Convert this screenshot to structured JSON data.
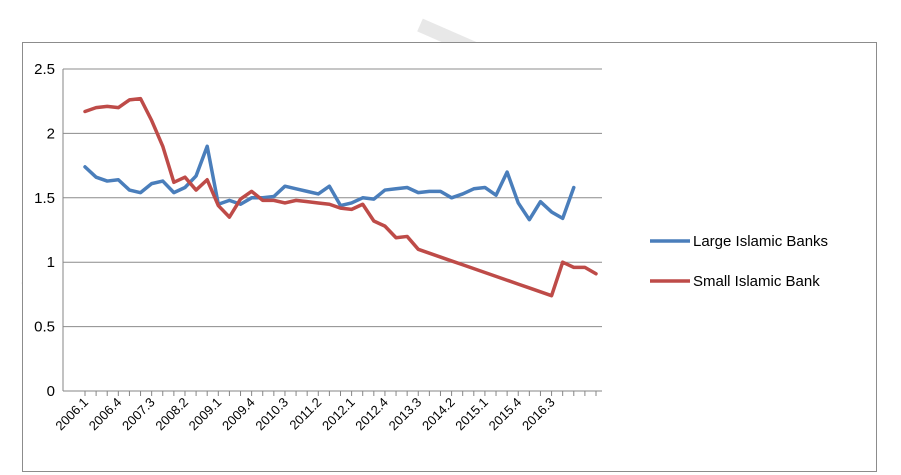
{
  "chart_data": {
    "type": "line",
    "title": "",
    "xlabel": "",
    "ylabel": "",
    "ylim": [
      0,
      2.5
    ],
    "yticks": [
      "0",
      "0.5",
      "1",
      "1.5",
      "2",
      "2.5"
    ],
    "xtick_labels": [
      "2006.1",
      "2006.4",
      "2007.3",
      "2008.2",
      "2009.1",
      "2009.4",
      "2010.3",
      "2011.2",
      "2012.1",
      "2012.4",
      "2013.3",
      "2014.2",
      "2015.1",
      "2015.4",
      "2016.3"
    ],
    "grid": true,
    "legend_position": "right",
    "series": [
      {
        "name": "Large Islamic Banks",
        "color": "#4a7ebb",
        "values": [
          1.74,
          1.66,
          1.63,
          1.64,
          1.56,
          1.54,
          1.61,
          1.63,
          1.54,
          1.58,
          1.67,
          1.9,
          1.45,
          1.48,
          1.45,
          1.5,
          1.5,
          1.51,
          1.59,
          1.57,
          1.55,
          1.53,
          1.59,
          1.44,
          1.46,
          1.5,
          1.49,
          1.56,
          1.57,
          1.58,
          1.54,
          1.55,
          1.55,
          1.5,
          1.53,
          1.57,
          1.58,
          1.52,
          1.7,
          1.46,
          1.33,
          1.47,
          1.39,
          1.34,
          1.58
        ]
      },
      {
        "name": "Small Islamic Bank",
        "color": "#be4b48",
        "values": [
          2.17,
          2.2,
          2.21,
          2.2,
          2.26,
          2.27,
          2.1,
          1.9,
          1.62,
          1.66,
          1.56,
          1.64,
          1.44,
          1.35,
          1.49,
          1.55,
          1.48,
          1.48,
          1.46,
          1.48,
          1.47,
          1.46,
          1.45,
          1.42,
          1.41,
          1.45,
          1.32,
          1.28,
          1.19,
          1.2,
          1.1,
          1.07,
          1.04,
          1.01,
          0.98,
          0.95,
          0.92,
          0.89,
          0.86,
          0.83,
          0.8,
          0.77,
          0.74,
          1.0,
          0.96,
          0.96,
          0.91
        ]
      }
    ]
  }
}
